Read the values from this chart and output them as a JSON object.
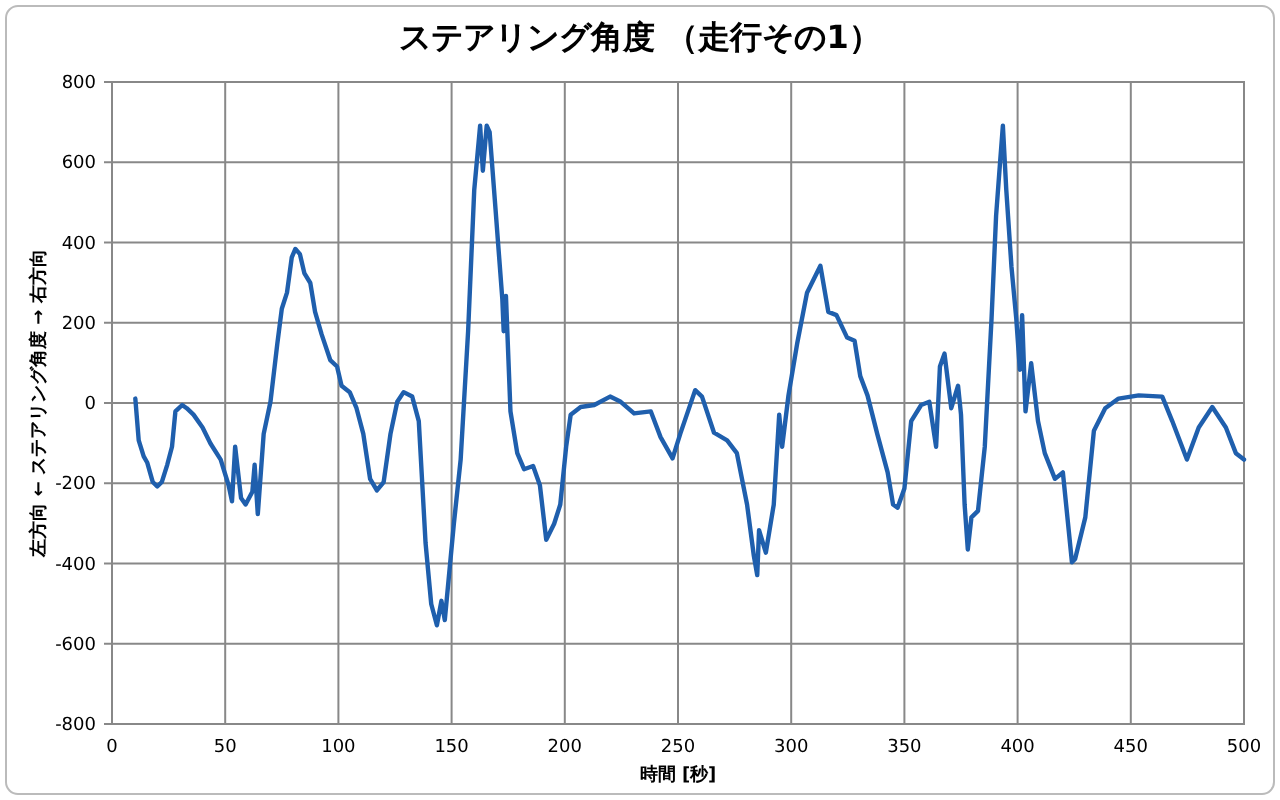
{
  "chart_data": {
    "type": "line",
    "title": "ステアリング角度 （走行その1）",
    "xlabel": "時間 [秒]",
    "ylabel": "左方向 ← ステアリング角度 → 右方向",
    "xlim": [
      0,
      500
    ],
    "xticks": [
      0,
      50,
      100,
      150,
      200,
      250,
      300,
      350,
      400,
      450,
      500
    ],
    "ylim": [
      -800,
      800
    ],
    "yticks": [
      -800,
      -600,
      -400,
      -200,
      0,
      200,
      400,
      600,
      800
    ],
    "grid": true,
    "series": [
      {
        "color": "#1f5fad",
        "x": [
          10.3,
          11.8,
          14,
          15.6,
          18,
          20,
          22,
          24.4,
          26.5,
          28,
          31,
          33,
          36,
          40,
          43.5,
          48,
          51.5,
          53,
          54.4,
          57,
          59,
          62,
          63,
          64.4,
          67,
          70,
          73,
          75,
          77.3,
          79.4,
          81,
          83,
          85,
          87.6,
          89.7,
          92.6,
          96.4,
          99.4,
          101.4,
          105,
          108,
          111,
          114,
          117,
          120,
          123,
          126,
          128.8,
          132.6,
          135.5,
          138.5,
          141,
          143.5,
          145.5,
          147,
          151,
          154,
          157.3,
          160,
          162.6,
          163.8,
          165.5,
          166.8,
          169.4,
          172.4,
          173,
          174,
          176,
          179,
          182,
          186,
          189,
          191.8,
          195.3,
          198,
          200.6,
          202.6,
          207,
          213,
          220,
          224.7,
          230.6,
          238,
          242.3,
          247.6,
          251,
          257.6,
          260.6,
          265.9,
          271.7,
          276,
          280.5,
          283.5,
          285,
          285.8,
          288.8,
          292.3,
          294.7,
          296,
          298.8,
          302.6,
          307,
          312.9,
          316.4,
          320,
          324.7,
          328,
          330.5,
          333.7,
          338,
          342.6,
          345,
          347,
          350,
          353,
          357.4,
          361,
          364,
          365.7,
          367.7,
          370.7,
          373.7,
          375,
          376.6,
          378,
          379.6,
          382.5,
          385.5,
          388.5,
          390.5,
          392.3,
          393.5,
          395,
          397.3,
          399.4,
          401,
          402,
          403.5,
          406,
          409,
          412,
          416.5,
          420,
          424,
          425.4,
          429.9,
          433.7,
          438.7,
          444.6,
          453.5,
          463.9,
          468.3,
          474.8,
          480,
          486,
          492,
          496.4,
          500
        ],
        "values": [
          11,
          -93,
          -133,
          -149,
          -197,
          -208,
          -197,
          -154,
          -109,
          -21,
          -5,
          -13,
          -29,
          -61,
          -101,
          -141,
          -205,
          -245,
          -109,
          -237,
          -253,
          -221,
          -154,
          -277,
          -77,
          3,
          147,
          235,
          275,
          363,
          384,
          371,
          323,
          299,
          227,
          171,
          107,
          91,
          43,
          27,
          -13,
          -77,
          -189,
          -218,
          -197,
          -77,
          3,
          27,
          16,
          -45,
          -349,
          -501,
          -554,
          -493,
          -541,
          -301,
          -141,
          179,
          531,
          691,
          579,
          691,
          675,
          483,
          259,
          179,
          267,
          -21,
          -125,
          -165,
          -157,
          -205,
          -341,
          -301,
          -253,
          -109,
          -29,
          -10,
          -5,
          16,
          3,
          -26,
          -21,
          -85,
          -138,
          -77,
          32,
          16,
          -74,
          -93,
          -125,
          -253,
          -381,
          -429,
          -317,
          -373,
          -253,
          -29,
          -109,
          19,
          147,
          275,
          342,
          227,
          219,
          163,
          155,
          67,
          19,
          -77,
          -173,
          -253,
          -261,
          -213,
          -45,
          -5,
          3,
          -109,
          91,
          123,
          -13,
          43,
          -29,
          -253,
          -365,
          -285,
          -269,
          -109,
          211,
          467,
          603,
          691,
          531,
          339,
          211,
          83,
          219,
          -21,
          99,
          -45,
          -125,
          -189,
          -173,
          -397,
          -389,
          -285,
          -69,
          -13,
          11,
          19,
          16,
          -45,
          -141,
          -61,
          -10,
          -61,
          -125,
          -141
        ]
      }
    ]
  }
}
